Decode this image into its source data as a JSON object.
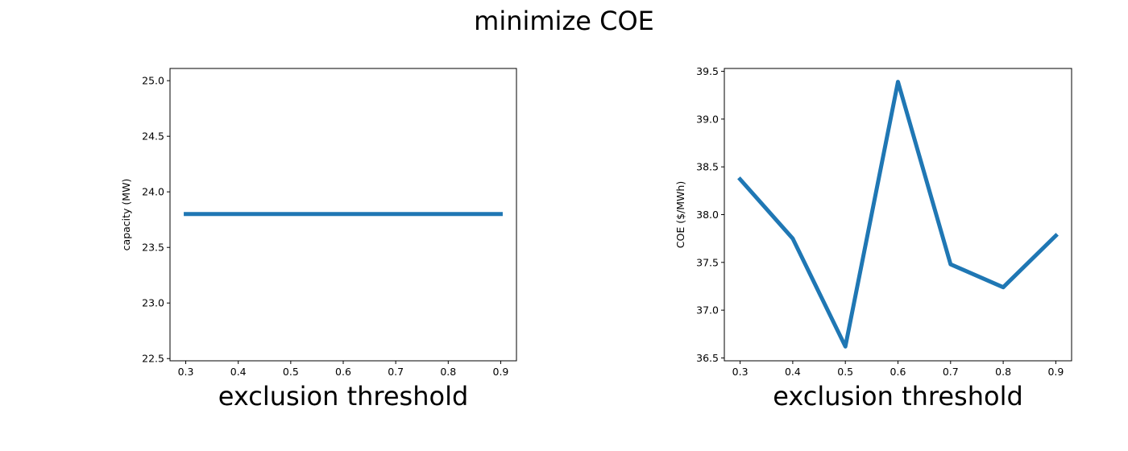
{
  "figure": {
    "title": "minimize COE"
  },
  "chart_data": [
    {
      "type": "line",
      "title": "",
      "xlabel": "exclusion threshold",
      "ylabel": "capacity (MW)",
      "x": [
        0.3,
        0.4,
        0.5,
        0.6,
        0.7,
        0.8,
        0.9
      ],
      "series": [
        {
          "values": [
            23.8,
            23.8,
            23.8,
            23.8,
            23.8,
            23.8,
            23.8
          ]
        }
      ],
      "xlim": [
        0.27,
        0.93
      ],
      "ylim": [
        22.48,
        25.11
      ],
      "xticks": [
        "0.3",
        "0.4",
        "0.5",
        "0.6",
        "0.7",
        "0.8",
        "0.9"
      ],
      "yticks": [
        "22.5",
        "23.0",
        "23.5",
        "24.0",
        "24.5",
        "25.0"
      ],
      "grid": false,
      "color": "#1f77b4"
    },
    {
      "type": "line",
      "title": "",
      "xlabel": "exclusion threshold",
      "ylabel": "COE ($/MWh)",
      "x": [
        0.3,
        0.4,
        0.5,
        0.6,
        0.7,
        0.8,
        0.9
      ],
      "series": [
        {
          "values": [
            38.37,
            37.75,
            36.62,
            39.39,
            37.48,
            37.24,
            37.78
          ]
        }
      ],
      "xlim": [
        0.27,
        0.93
      ],
      "ylim": [
        36.47,
        39.53
      ],
      "xticks": [
        "0.3",
        "0.4",
        "0.5",
        "0.6",
        "0.7",
        "0.8",
        "0.9"
      ],
      "yticks": [
        "36.5",
        "37.0",
        "37.5",
        "38.0",
        "38.5",
        "39.0",
        "39.5"
      ],
      "grid": false,
      "color": "#1f77b4"
    }
  ]
}
